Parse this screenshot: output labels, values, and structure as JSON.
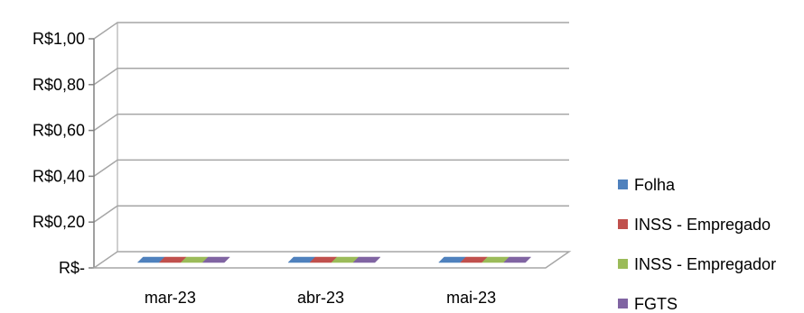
{
  "chart_data": {
    "type": "bar",
    "style": "3d-clustered-column",
    "categories": [
      "mar-23",
      "abr-23",
      "mai-23"
    ],
    "series": [
      {
        "name": "Folha",
        "values": [
          0,
          0,
          0
        ],
        "color": "#4F81BD"
      },
      {
        "name": "INSS - Empregado",
        "values": [
          0,
          0,
          0
        ],
        "color": "#C0504D"
      },
      {
        "name": "INSS - Empregador",
        "values": [
          0,
          0,
          0
        ],
        "color": "#9BBB59"
      },
      {
        "name": "FGTS",
        "values": [
          0,
          0,
          0
        ],
        "color": "#8064A2"
      }
    ],
    "y_ticks": [
      "R$-",
      "R$0,20",
      "R$0,40",
      "R$0,60",
      "R$0,80",
      "R$1,00"
    ],
    "ylim": [
      0,
      1
    ],
    "grid": true,
    "legend_position": "right"
  }
}
